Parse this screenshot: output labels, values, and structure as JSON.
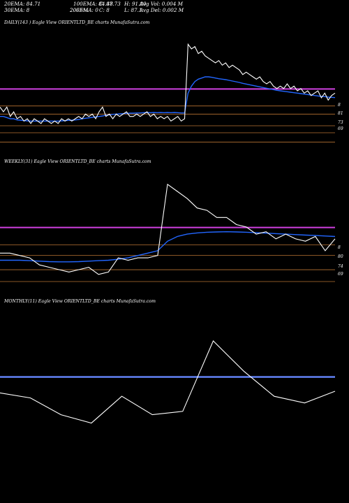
{
  "header": {
    "row1": [
      "20EMA: 84.71",
      "100EMA: 84.48",
      "C: 87.73",
      "H: 91.80",
      "Avg Vol: 0.004  M"
    ],
    "row2": [
      "30EMA: 8",
      "200EMA: 0",
      "C: 8",
      "L: 87.1",
      "Avg Del: 0.002  M"
    ],
    "row2_overlay": "20EMA"
  },
  "colors": {
    "background": "#000000",
    "price": "#ffffff",
    "ema_blue": "#2266ff",
    "resistance_magenta": "#d040e0",
    "support_orange": "#b87333",
    "flat_line": "#6688ff"
  },
  "chart_data": [
    {
      "type": "line",
      "panel": "daily",
      "title": "DAILY(143           ) Eagle  View  ORIENTLTD_BE charts MunafaSutra.com",
      "tick_labels": [
        "8",
        "81",
        "73",
        "69"
      ],
      "ylim": [
        64,
        118
      ],
      "price": [
        84,
        82,
        84,
        80,
        82,
        79,
        80,
        78,
        79,
        77,
        79,
        78,
        77,
        79,
        78,
        77,
        78,
        77,
        79,
        78,
        79,
        78,
        79,
        80,
        79,
        81,
        80,
        81,
        79,
        82,
        84,
        80,
        81,
        79,
        81,
        80,
        81,
        82,
        80,
        80,
        81,
        80,
        81,
        82,
        80,
        81,
        79,
        80,
        79,
        80,
        78,
        79,
        80,
        78,
        79,
        111,
        109,
        110,
        107,
        108,
        106,
        105,
        104,
        103,
        104,
        102,
        103,
        101,
        102,
        101,
        100,
        98,
        99,
        98,
        97,
        96,
        97,
        95,
        94,
        95,
        93,
        92,
        93,
        92,
        94,
        92,
        93,
        91,
        92,
        90,
        91,
        89,
        90,
        91,
        88,
        90,
        87,
        89,
        90
      ],
      "ema": [
        80,
        80,
        79.5,
        79,
        79,
        78.5,
        78.4,
        78.2,
        78.1,
        78,
        78,
        78,
        78,
        78,
        78,
        78,
        78,
        78,
        78.1,
        78.2,
        78.3,
        78.4,
        78.5,
        78.7,
        79,
        79.2,
        79.4,
        79.6,
        79.8,
        80,
        80.2,
        80.5,
        80.7,
        80.9,
        81,
        81.1,
        81.2,
        81.3,
        81.4,
        81.4,
        81.5,
        81.5,
        81.6,
        81.7,
        81.6,
        81.7,
        81.6,
        81.7,
        81.6,
        81.7,
        81.6,
        81.7,
        81.6,
        81.5,
        81.5,
        90,
        93,
        95,
        96,
        96.5,
        97,
        97,
        96.8,
        96.5,
        96.2,
        96,
        95.8,
        95.5,
        95.2,
        94.9,
        94.6,
        94.2,
        93.9,
        93.6,
        93.3,
        93,
        92.7,
        92.4,
        92.1,
        91.8,
        91.5,
        91.2,
        91,
        90.8,
        90.6,
        90.4,
        90.2,
        90,
        89.8,
        89.6,
        89.4,
        89.2,
        89,
        88.8,
        88.6,
        88.5,
        88.3,
        88.2,
        88.1
      ],
      "resistance_level": 91.8,
      "support_levels": [
        84.5,
        81,
        76,
        73,
        69
      ]
    },
    {
      "type": "line",
      "panel": "weekly",
      "title": "WEEKLY(31) Eagle  View  ORIENTLTD_BE charts MunafaSutra.com",
      "tick_labels": [
        "8",
        "80",
        "74",
        "69"
      ],
      "ylim": [
        64,
        117
      ],
      "price": [
        81,
        81,
        80,
        79,
        76,
        75,
        74,
        73,
        74,
        75,
        72,
        73,
        79,
        78,
        79,
        79,
        80,
        110,
        107,
        104,
        100,
        99,
        96,
        96,
        93,
        92,
        89,
        90,
        87,
        89,
        87,
        86,
        88,
        82,
        87
      ],
      "ema": [
        78,
        78,
        78,
        77.8,
        77.6,
        77.4,
        77.3,
        77.3,
        77.4,
        77.6,
        77.8,
        78,
        78.4,
        79,
        80,
        81,
        82,
        86,
        88,
        89,
        89.5,
        89.8,
        89.9,
        90,
        89.9,
        89.8,
        89.6,
        89.4,
        89.2,
        89,
        88.8,
        88.6,
        88.4,
        88.2,
        88
      ],
      "resistance_level": 91.8,
      "support_levels": [
        84.5,
        80,
        74,
        69
      ]
    },
    {
      "type": "line",
      "panel": "monthly",
      "title": "MONTHLY(11) Eagle  View  ORIENTLTD_BE charts MunafaSutra.com",
      "ylim": [
        40,
        140
      ],
      "price": [
        89,
        86,
        76,
        71,
        87,
        76,
        78,
        120,
        102,
        87,
        83,
        90
      ],
      "ema_level": 98.5
    }
  ]
}
